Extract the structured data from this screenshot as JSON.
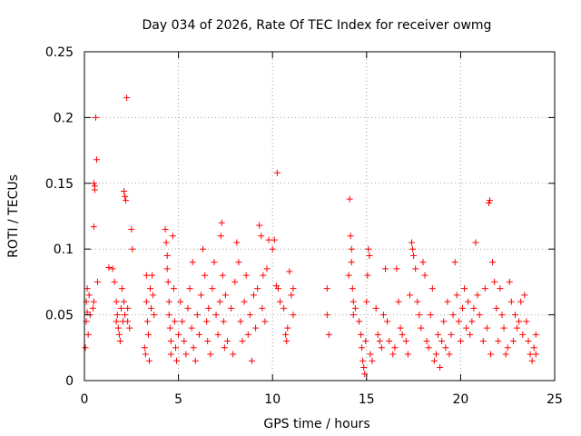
{
  "chart_data": {
    "type": "scatter",
    "title": "Day 034 of 2026, Rate Of TEC Index for receiver owmg",
    "xlabel": "GPS time / hours",
    "ylabel": "ROTI / TECUs",
    "xlim": [
      0,
      25
    ],
    "ylim": [
      0,
      0.25
    ],
    "xticks": [
      0,
      5,
      10,
      15,
      20,
      25
    ],
    "yticks": [
      0,
      0.05,
      0.1,
      0.15,
      0.2,
      0.25
    ],
    "x_tick_labels": [
      "0",
      "5",
      "10",
      "15",
      "20",
      "25"
    ],
    "y_tick_labels": [
      "0",
      "0.05",
      "0.1",
      "0.15",
      "0.2",
      "0.25"
    ],
    "grid": true,
    "legend": "none",
    "marker": "plus",
    "color": "#ff0000",
    "points": [
      [
        0.05,
        0.025
      ],
      [
        0.1,
        0.045
      ],
      [
        0.1,
        0.06
      ],
      [
        0.15,
        0.052
      ],
      [
        0.15,
        0.07
      ],
      [
        0.2,
        0.035
      ],
      [
        0.25,
        0.065
      ],
      [
        0.3,
        0.05
      ],
      [
        0.45,
        0.055
      ],
      [
        0.5,
        0.15
      ],
      [
        0.5,
        0.117
      ],
      [
        0.5,
        0.06
      ],
      [
        0.55,
        0.145
      ],
      [
        0.55,
        0.148
      ],
      [
        0.6,
        0.2
      ],
      [
        0.65,
        0.168
      ],
      [
        0.7,
        0.075
      ],
      [
        1.3,
        0.086
      ],
      [
        1.5,
        0.085
      ],
      [
        1.6,
        0.075
      ],
      [
        1.7,
        0.06
      ],
      [
        1.7,
        0.045
      ],
      [
        1.75,
        0.05
      ],
      [
        1.8,
        0.04
      ],
      [
        1.85,
        0.035
      ],
      [
        1.9,
        0.03
      ],
      [
        1.95,
        0.055
      ],
      [
        2.0,
        0.07
      ],
      [
        2.05,
        0.045
      ],
      [
        2.1,
        0.06
      ],
      [
        2.15,
        0.05
      ],
      [
        2.1,
        0.144
      ],
      [
        2.15,
        0.14
      ],
      [
        2.2,
        0.137
      ],
      [
        2.25,
        0.215
      ],
      [
        2.3,
        0.055
      ],
      [
        2.3,
        0.045
      ],
      [
        2.4,
        0.04
      ],
      [
        2.5,
        0.115
      ],
      [
        2.55,
        0.1
      ],
      [
        3.2,
        0.025
      ],
      [
        3.25,
        0.02
      ],
      [
        3.3,
        0.08
      ],
      [
        3.3,
        0.06
      ],
      [
        3.35,
        0.045
      ],
      [
        3.4,
        0.035
      ],
      [
        3.45,
        0.015
      ],
      [
        3.5,
        0.07
      ],
      [
        3.55,
        0.055
      ],
      [
        3.6,
        0.08
      ],
      [
        3.65,
        0.065
      ],
      [
        3.7,
        0.05
      ],
      [
        4.3,
        0.115
      ],
      [
        4.35,
        0.105
      ],
      [
        4.4,
        0.095
      ],
      [
        4.4,
        0.085
      ],
      [
        4.45,
        0.075
      ],
      [
        4.5,
        0.06
      ],
      [
        4.5,
        0.05
      ],
      [
        4.55,
        0.04
      ],
      [
        4.6,
        0.03
      ],
      [
        4.6,
        0.02
      ],
      [
        4.7,
        0.11
      ],
      [
        4.75,
        0.07
      ],
      [
        4.8,
        0.045
      ],
      [
        4.85,
        0.025
      ],
      [
        4.9,
        0.015
      ],
      [
        5.0,
        0.035
      ],
      [
        5.1,
        0.06
      ],
      [
        5.2,
        0.045
      ],
      [
        5.3,
        0.03
      ],
      [
        5.4,
        0.02
      ],
      [
        5.5,
        0.055
      ],
      [
        5.6,
        0.07
      ],
      [
        5.7,
        0.04
      ],
      [
        5.75,
        0.09
      ],
      [
        5.8,
        0.025
      ],
      [
        5.9,
        0.015
      ],
      [
        6.0,
        0.05
      ],
      [
        6.1,
        0.035
      ],
      [
        6.2,
        0.065
      ],
      [
        6.3,
        0.1
      ],
      [
        6.4,
        0.08
      ],
      [
        6.5,
        0.045
      ],
      [
        6.55,
        0.03
      ],
      [
        6.6,
        0.055
      ],
      [
        6.7,
        0.02
      ],
      [
        6.8,
        0.07
      ],
      [
        6.9,
        0.09
      ],
      [
        7.0,
        0.05
      ],
      [
        7.1,
        0.035
      ],
      [
        7.2,
        0.06
      ],
      [
        7.25,
        0.11
      ],
      [
        7.3,
        0.12
      ],
      [
        7.35,
        0.08
      ],
      [
        7.4,
        0.045
      ],
      [
        7.45,
        0.025
      ],
      [
        7.5,
        0.065
      ],
      [
        7.6,
        0.03
      ],
      [
        7.8,
        0.055
      ],
      [
        7.9,
        0.02
      ],
      [
        8.0,
        0.075
      ],
      [
        8.1,
        0.105
      ],
      [
        8.2,
        0.09
      ],
      [
        8.3,
        0.045
      ],
      [
        8.4,
        0.03
      ],
      [
        8.5,
        0.06
      ],
      [
        8.6,
        0.08
      ],
      [
        8.7,
        0.035
      ],
      [
        8.8,
        0.05
      ],
      [
        8.9,
        0.015
      ],
      [
        9.0,
        0.065
      ],
      [
        9.1,
        0.04
      ],
      [
        9.2,
        0.07
      ],
      [
        9.3,
        0.118
      ],
      [
        9.4,
        0.11
      ],
      [
        9.45,
        0.055
      ],
      [
        9.5,
        0.08
      ],
      [
        9.6,
        0.045
      ],
      [
        9.7,
        0.085
      ],
      [
        9.8,
        0.107
      ],
      [
        10.0,
        0.1
      ],
      [
        10.1,
        0.107
      ],
      [
        10.2,
        0.072
      ],
      [
        10.25,
        0.158
      ],
      [
        10.3,
        0.07
      ],
      [
        10.4,
        0.06
      ],
      [
        10.6,
        0.055
      ],
      [
        10.7,
        0.035
      ],
      [
        10.75,
        0.03
      ],
      [
        10.8,
        0.04
      ],
      [
        10.9,
        0.083
      ],
      [
        11.0,
        0.065
      ],
      [
        11.1,
        0.07
      ],
      [
        11.1,
        0.05
      ],
      [
        12.9,
        0.07
      ],
      [
        12.9,
        0.05
      ],
      [
        13.0,
        0.035
      ],
      [
        14.05,
        0.08
      ],
      [
        14.1,
        0.138
      ],
      [
        14.15,
        0.11
      ],
      [
        14.2,
        0.1
      ],
      [
        14.2,
        0.09
      ],
      [
        14.25,
        0.07
      ],
      [
        14.3,
        0.05
      ],
      [
        14.3,
        0.06
      ],
      [
        14.4,
        0.055
      ],
      [
        14.6,
        0.045
      ],
      [
        14.7,
        0.035
      ],
      [
        14.75,
        0.025
      ],
      [
        14.8,
        0.015
      ],
      [
        14.85,
        0.01
      ],
      [
        14.9,
        0.005
      ],
      [
        14.95,
        0.03
      ],
      [
        15.0,
        0.06
      ],
      [
        15.05,
        0.08
      ],
      [
        15.1,
        0.1
      ],
      [
        15.15,
        0.095
      ],
      [
        15.2,
        0.02
      ],
      [
        15.3,
        0.015
      ],
      [
        15.5,
        0.055
      ],
      [
        15.6,
        0.035
      ],
      [
        15.7,
        0.03
      ],
      [
        15.8,
        0.025
      ],
      [
        15.9,
        0.05
      ],
      [
        16.0,
        0.085
      ],
      [
        16.1,
        0.045
      ],
      [
        16.2,
        0.03
      ],
      [
        16.4,
        0.02
      ],
      [
        16.5,
        0.025
      ],
      [
        16.6,
        0.085
      ],
      [
        16.7,
        0.06
      ],
      [
        16.8,
        0.04
      ],
      [
        16.9,
        0.035
      ],
      [
        17.1,
        0.03
      ],
      [
        17.2,
        0.02
      ],
      [
        17.3,
        0.065
      ],
      [
        17.4,
        0.105
      ],
      [
        17.45,
        0.1
      ],
      [
        17.5,
        0.095
      ],
      [
        17.6,
        0.085
      ],
      [
        17.7,
        0.06
      ],
      [
        17.8,
        0.05
      ],
      [
        17.9,
        0.04
      ],
      [
        18.0,
        0.09
      ],
      [
        18.1,
        0.08
      ],
      [
        18.2,
        0.03
      ],
      [
        18.3,
        0.025
      ],
      [
        18.4,
        0.05
      ],
      [
        18.5,
        0.07
      ],
      [
        18.6,
        0.015
      ],
      [
        18.7,
        0.02
      ],
      [
        18.8,
        0.035
      ],
      [
        18.9,
        0.01
      ],
      [
        19.0,
        0.03
      ],
      [
        19.1,
        0.045
      ],
      [
        19.2,
        0.025
      ],
      [
        19.3,
        0.06
      ],
      [
        19.4,
        0.02
      ],
      [
        19.5,
        0.035
      ],
      [
        19.6,
        0.05
      ],
      [
        19.7,
        0.09
      ],
      [
        19.8,
        0.065
      ],
      [
        19.9,
        0.045
      ],
      [
        20.0,
        0.03
      ],
      [
        20.1,
        0.055
      ],
      [
        20.2,
        0.07
      ],
      [
        20.3,
        0.04
      ],
      [
        20.4,
        0.06
      ],
      [
        20.5,
        0.035
      ],
      [
        20.6,
        0.045
      ],
      [
        20.7,
        0.055
      ],
      [
        20.8,
        0.105
      ],
      [
        20.9,
        0.065
      ],
      [
        21.0,
        0.05
      ],
      [
        21.2,
        0.03
      ],
      [
        21.3,
        0.07
      ],
      [
        21.4,
        0.04
      ],
      [
        21.5,
        0.135
      ],
      [
        21.55,
        0.137
      ],
      [
        21.6,
        0.02
      ],
      [
        21.7,
        0.09
      ],
      [
        21.8,
        0.075
      ],
      [
        21.9,
        0.055
      ],
      [
        22.0,
        0.03
      ],
      [
        22.1,
        0.07
      ],
      [
        22.2,
        0.05
      ],
      [
        22.3,
        0.04
      ],
      [
        22.4,
        0.02
      ],
      [
        22.5,
        0.025
      ],
      [
        22.6,
        0.075
      ],
      [
        22.7,
        0.06
      ],
      [
        22.8,
        0.03
      ],
      [
        22.9,
        0.05
      ],
      [
        23.0,
        0.04
      ],
      [
        23.1,
        0.045
      ],
      [
        23.2,
        0.06
      ],
      [
        23.3,
        0.035
      ],
      [
        23.4,
        0.065
      ],
      [
        23.5,
        0.045
      ],
      [
        23.6,
        0.03
      ],
      [
        23.7,
        0.02
      ],
      [
        23.8,
        0.015
      ],
      [
        23.9,
        0.025
      ],
      [
        24.0,
        0.035
      ],
      [
        24.0,
        0.02
      ]
    ]
  }
}
